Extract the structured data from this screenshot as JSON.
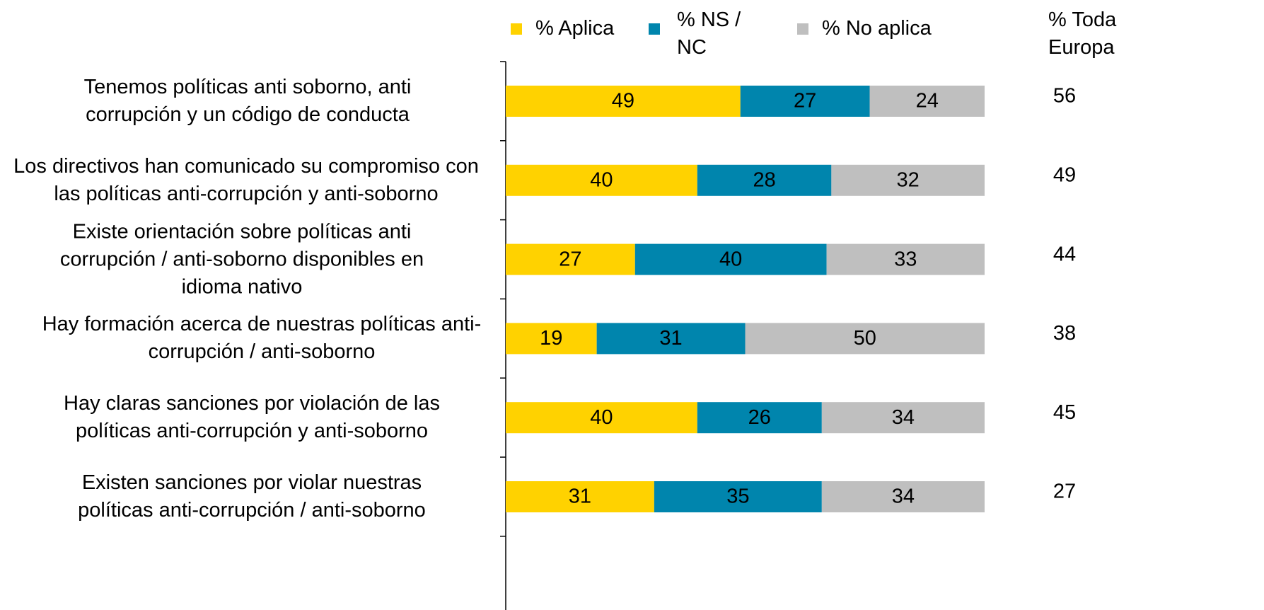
{
  "chart_data": {
    "type": "stacked_bar_horizontal",
    "categories": [
      "Tenemos políticas anti soborno, anti corrupción y un código de conducta",
      "Los directivos han comunicado su compromiso con las políticas anti-corrupción y anti-soborno",
      "Existe orientación  sobre políticas anti corrupción / anti-soborno disponibles en idioma nativo",
      "Hay formación acerca de nuestras políticas anti-corrupción / anti-soborno",
      "Hay claras sanciones por violación de las políticas anti-corrupción y anti-soborno",
      "Existen sanciones por violar nuestras políticas anti-corrupción / anti-soborno"
    ],
    "series": [
      {
        "name": "% Aplica",
        "color": "#ffd200",
        "values": [
          49,
          40,
          27,
          19,
          40,
          31
        ]
      },
      {
        "name": "% NS / NC",
        "color": "#0085ad",
        "values": [
          27,
          28,
          40,
          31,
          26,
          35
        ]
      },
      {
        "name": "% No aplica",
        "color": "#bfbfbf",
        "values": [
          24,
          32,
          33,
          50,
          34,
          34
        ]
      }
    ],
    "xlim": [
      0,
      100
    ],
    "europe": {
      "label": "% Toda Europa",
      "values": [
        56,
        49,
        44,
        38,
        45,
        27
      ]
    }
  }
}
